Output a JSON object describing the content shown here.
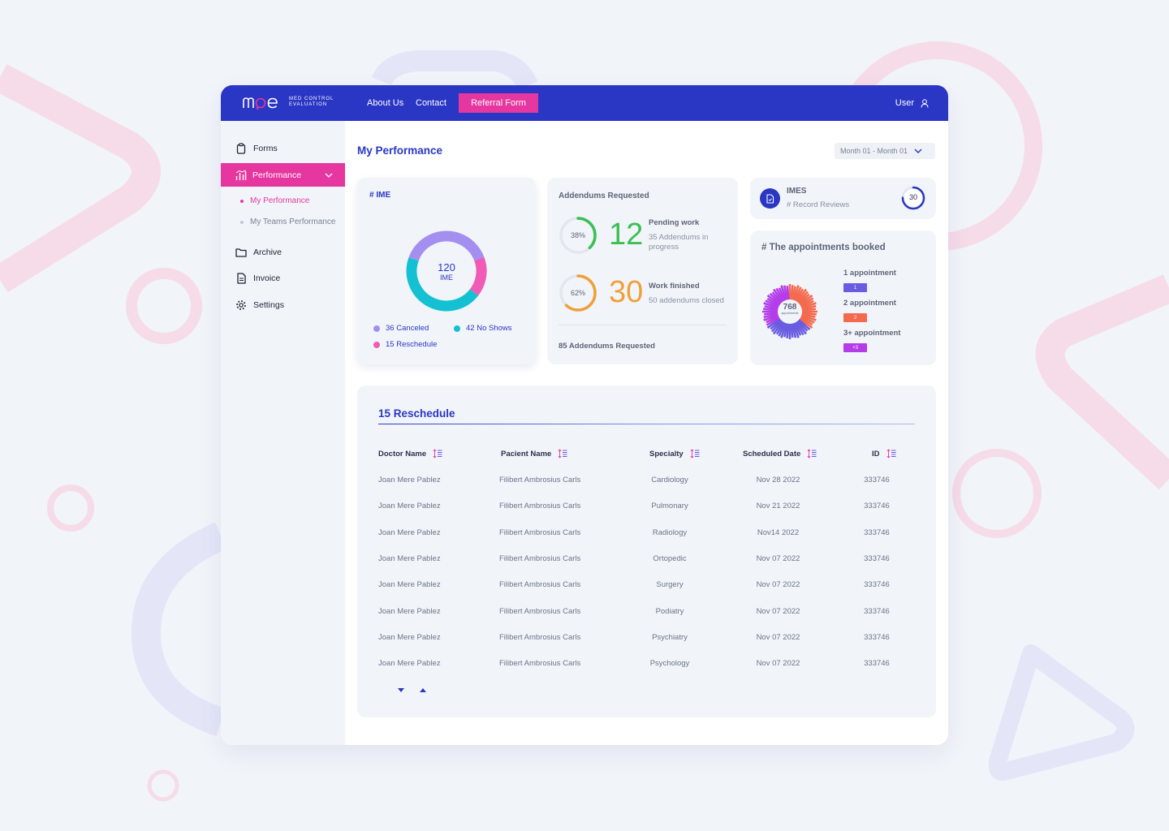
{
  "brand": {
    "logo_text": "mce",
    "logo_sub_1": "MED CONTROL",
    "logo_sub_2": "EVALUATION"
  },
  "topbar": {
    "about": "About Us",
    "contact": "Contact",
    "referral": "Referral Form",
    "user": "User"
  },
  "sidebar": {
    "forms": "Forms",
    "performance": "Performance",
    "my_performance": "My Performance",
    "teams_performance": "My Teams Performance",
    "archive": "Archive",
    "invoice": "Invoice",
    "settings": "Settings"
  },
  "header": {
    "title": "My Performance",
    "month_range": "Month 01 - Month 01"
  },
  "ime": {
    "title": "# IME",
    "total": "120",
    "total_label": "IME",
    "canceled": "36 Canceled",
    "no_shows": "42 No Shows",
    "reschedule": "15 Reschedule",
    "segments": [
      {
        "name": "Canceled",
        "value": 36,
        "color": "#a48ff0"
      },
      {
        "name": "No Shows",
        "value": 42,
        "color": "#13c1d3"
      },
      {
        "name": "Reschedule",
        "value": 15,
        "color": "#f05bb5"
      }
    ]
  },
  "addendums": {
    "title": "Addendums Requested",
    "pending": {
      "percent": "38%",
      "fraction": 0.38,
      "count": "12",
      "title": "Pending work",
      "sub": "35 Addendums in progress",
      "color": "#3bbf52"
    },
    "finished": {
      "percent": "62%",
      "fraction": 0.62,
      "count": "30",
      "title": "Work finished",
      "sub": "50 addendums closed",
      "color": "#f0a03a"
    },
    "footer": "85 Addendums Requested"
  },
  "imes": {
    "title": "IMES",
    "sub": "# Record Reviews",
    "count": "30",
    "fraction": 0.75
  },
  "appointments": {
    "title": "# The appointments booked",
    "total": "768",
    "total_label": "appointments",
    "items": [
      {
        "label": "1 appointment",
        "tag": "1",
        "color": "#6a5ce0"
      },
      {
        "label": "2 appointment",
        "tag": "2",
        "color": "#f46a4e"
      },
      {
        "label": "3+ appointment",
        "tag": "+3",
        "color": "#b43de8"
      }
    ]
  },
  "reschedule_table": {
    "title": "15 Reschedule",
    "columns": [
      "Doctor Name",
      "Pacient Name",
      "Specialty",
      "Scheduled Date",
      "ID"
    ],
    "rows": [
      [
        "Joan Mere Pablez",
        "Filibert Ambrosius Carls",
        "Cardiology",
        "Nov 28 2022",
        "333746"
      ],
      [
        "Joan Mere Pablez",
        "Filibert Ambrosius Carls",
        "Pulmonary",
        "Nov 21 2022",
        "333746"
      ],
      [
        "Joan Mere Pablez",
        "Filibert Ambrosius Carls",
        "Radiology",
        "Nov14 2022",
        "333746"
      ],
      [
        "Joan Mere Pablez",
        "Filibert Ambrosius Carls",
        "Ortopedic",
        "Nov 07 2022",
        "333746"
      ],
      [
        "Joan Mere Pablez",
        "Filibert Ambrosius Carls",
        "Surgery",
        "Nov 07 2022",
        "333746"
      ],
      [
        "Joan Mere Pablez",
        "Filibert Ambrosius Carls",
        "Podiatry",
        "Nov 07 2022",
        "333746"
      ],
      [
        "Joan Mere Pablez",
        "Filibert Ambrosius Carls",
        "Psychiatry",
        "Nov 07 2022",
        "333746"
      ],
      [
        "Joan Mere Pablez",
        "Filibert Ambrosius Carls",
        "Psychology",
        "Nov 07 2022",
        "333746"
      ]
    ]
  },
  "colors": {
    "primary": "#2a36c4",
    "accent": "#e6369f",
    "panel": "#f1f5fa"
  }
}
